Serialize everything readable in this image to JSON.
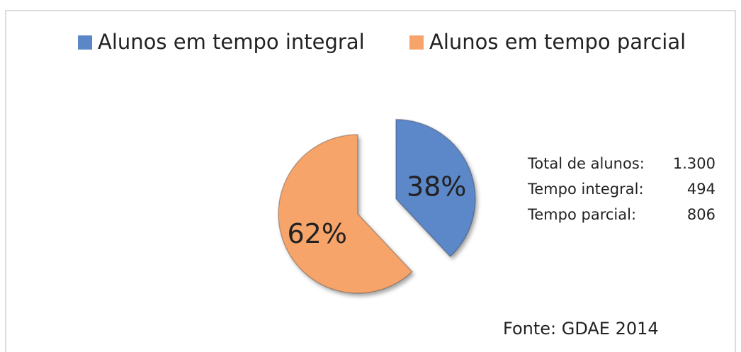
{
  "chart_data": {
    "type": "pie",
    "series": [
      {
        "name": "Alunos em tempo integral",
        "color": "#5b87c8",
        "values": [
          38
        ]
      },
      {
        "name": "Alunos em tempo parcial",
        "color": "#f7a46b",
        "values": [
          62
        ]
      }
    ],
    "value_labels": [
      "38%",
      "62%"
    ],
    "explode": [
      true,
      false
    ],
    "legend": "top",
    "info": [
      [
        "Total de alunos:",
        "1.300"
      ],
      [
        "Tempo integral:",
        "494"
      ],
      [
        "Tempo parcial:",
        "806"
      ]
    ],
    "source": "Fonte: GDAE 2014"
  }
}
